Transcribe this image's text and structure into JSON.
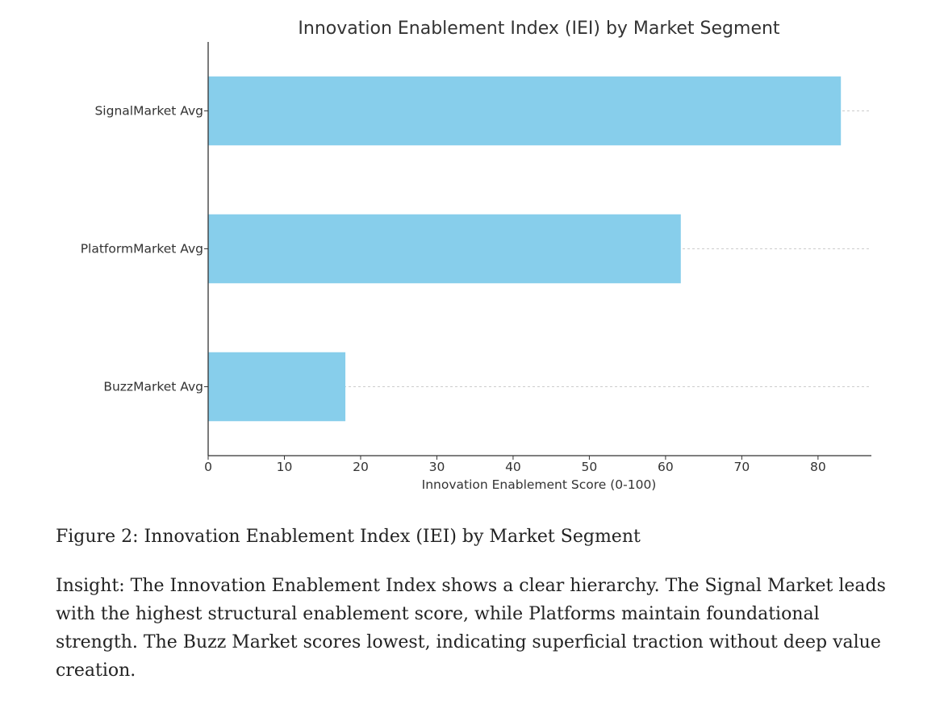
{
  "chart_data": {
    "type": "bar",
    "orientation": "horizontal",
    "title": "Innovation Enablement Index (IEI) by Market Segment",
    "categories": [
      "SignalMarket Avg",
      "PlatformMarket Avg",
      "BuzzMarket Avg"
    ],
    "values": [
      83,
      62,
      18
    ],
    "xlabel": "Innovation Enablement Score (0-100)",
    "ylabel": "",
    "xlim": [
      0,
      87
    ],
    "xticks": [
      0,
      10,
      20,
      30,
      40,
      50,
      60,
      70,
      80
    ],
    "grid": "horizontal dashed",
    "bar_color": "#87ceeb"
  },
  "caption": {
    "figure": "Figure 2: Innovation Enablement Index (IEI) by Market Segment",
    "insight": "Insight: The Innovation Enablement Index shows a clear hierarchy. The Signal Market leads with the highest structural enablement score, while Platforms maintain foundational strength. The Buzz Market scores lowest, indicating superficial traction without deep value creation."
  }
}
